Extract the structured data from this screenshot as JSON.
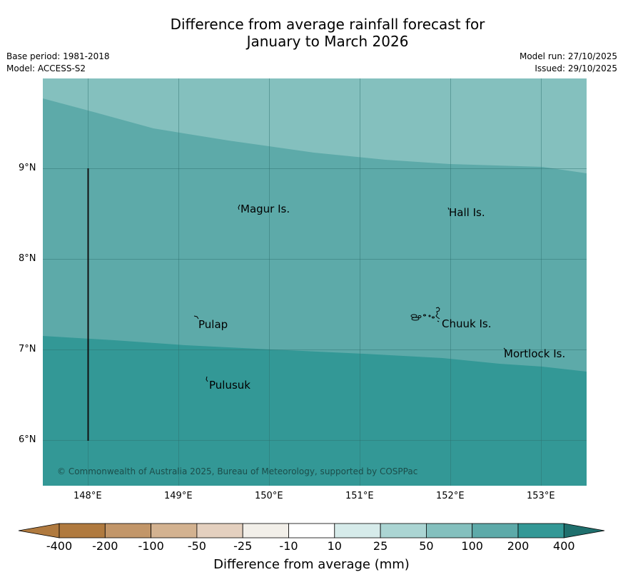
{
  "title": {
    "line1": "Difference from average rainfall forecast for",
    "line2": "January to March 2026"
  },
  "info": {
    "base_period": "Base period: 1981-2018",
    "model": "Model: ACCESS-S2",
    "model_run": "Model run: 27/10/2025",
    "issued": "Issued: 29/10/2025"
  },
  "axes": {
    "lat_labels": [
      "9°N",
      "8°N",
      "7°N",
      "6°N"
    ],
    "lon_labels": [
      "148°E",
      "149°E",
      "150°E",
      "151°E",
      "152°E",
      "153°E"
    ]
  },
  "places": {
    "magur": "Magur Is.",
    "hall": "Hall Is.",
    "pulap": "Pulap",
    "chuuk": "Chuuk Is.",
    "mortlock": "Mortlock Is.",
    "pulusuk": "Pulusuk"
  },
  "copyright": "© Commonwealth of Australia 2025, Bureau of Meteorology, supported by COSPPac",
  "colorbar": {
    "title": "Difference from average (mm)",
    "tick_labels": [
      "-400",
      "-200",
      "-100",
      "-50",
      "-25",
      "-10",
      "10",
      "25",
      "50",
      "100",
      "200",
      "400"
    ],
    "colors": [
      "#b07a3f",
      "#c29669",
      "#d3b290",
      "#e4d0bf",
      "#f2efe9",
      "#ffffff",
      "#d6ebea",
      "#abd5d3",
      "#84c0be",
      "#5daaa9",
      "#339896",
      "#1f6f6d"
    ]
  },
  "map_colors": {
    "band_50_100": "#84c0be",
    "band_100_200": "#5daaa9",
    "band_200_400": "#339896"
  }
}
